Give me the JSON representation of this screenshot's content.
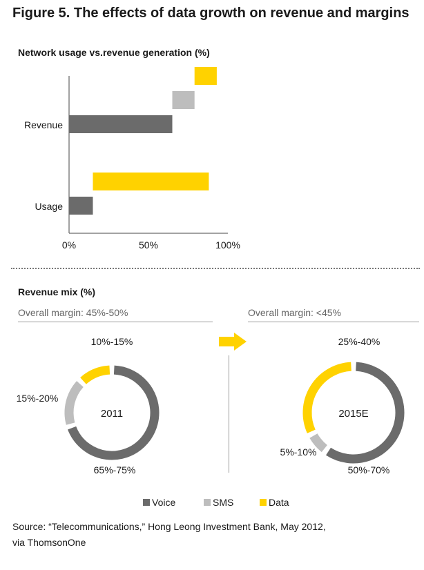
{
  "title": "Figure 5. The effects of data growth on revenue and margins",
  "colors": {
    "voice": "#6b6b6b",
    "sms": "#bdbdbd",
    "data": "#ffd200",
    "axis": "#444444"
  },
  "bar_section": {
    "subtitle": "Network usage vs.revenue generation (%)"
  },
  "mix_section": {
    "subtitle": "Revenue mix (%)",
    "margin_2011": "Overall margin: 45%-50%",
    "margin_2015": "Overall margin: <45%",
    "arrow_icon": "right-arrow-icon"
  },
  "legend": {
    "voice": "Voice",
    "sms": "SMS",
    "data": "Data"
  },
  "source": {
    "line1": "Source: “Telecommunications,” Hong Leong Investment Bank, May 2012,",
    "line2": "via ThomsonOne"
  },
  "chart_data": [
    {
      "type": "bar",
      "orientation": "horizontal-waterfall",
      "title": "Network usage vs.revenue generation (%)",
      "categories": [
        "Revenue",
        "Usage"
      ],
      "series": [
        {
          "name": "Voice",
          "values": [
            65,
            15
          ]
        },
        {
          "name": "SMS",
          "values": [
            14,
            0
          ]
        },
        {
          "name": "Data",
          "values": [
            14,
            73
          ]
        }
      ],
      "xlim": [
        0,
        100
      ],
      "xticks": [
        "0%",
        "50%",
        "100%"
      ]
    },
    {
      "type": "pie",
      "center_label": "2011",
      "segments": [
        {
          "name": "Voice",
          "label": "65%-75%",
          "value": 70
        },
        {
          "name": "SMS",
          "label": "15%-20%",
          "value": 17.5
        },
        {
          "name": "Data",
          "label": "10%-15%",
          "value": 12.5
        }
      ]
    },
    {
      "type": "pie",
      "center_label": "2015E",
      "segments": [
        {
          "name": "Voice",
          "label": "50%-70%",
          "value": 60
        },
        {
          "name": "SMS",
          "label": "5%-10%",
          "value": 7.5
        },
        {
          "name": "Data",
          "label": "25%-40%",
          "value": 32.5
        }
      ]
    }
  ]
}
